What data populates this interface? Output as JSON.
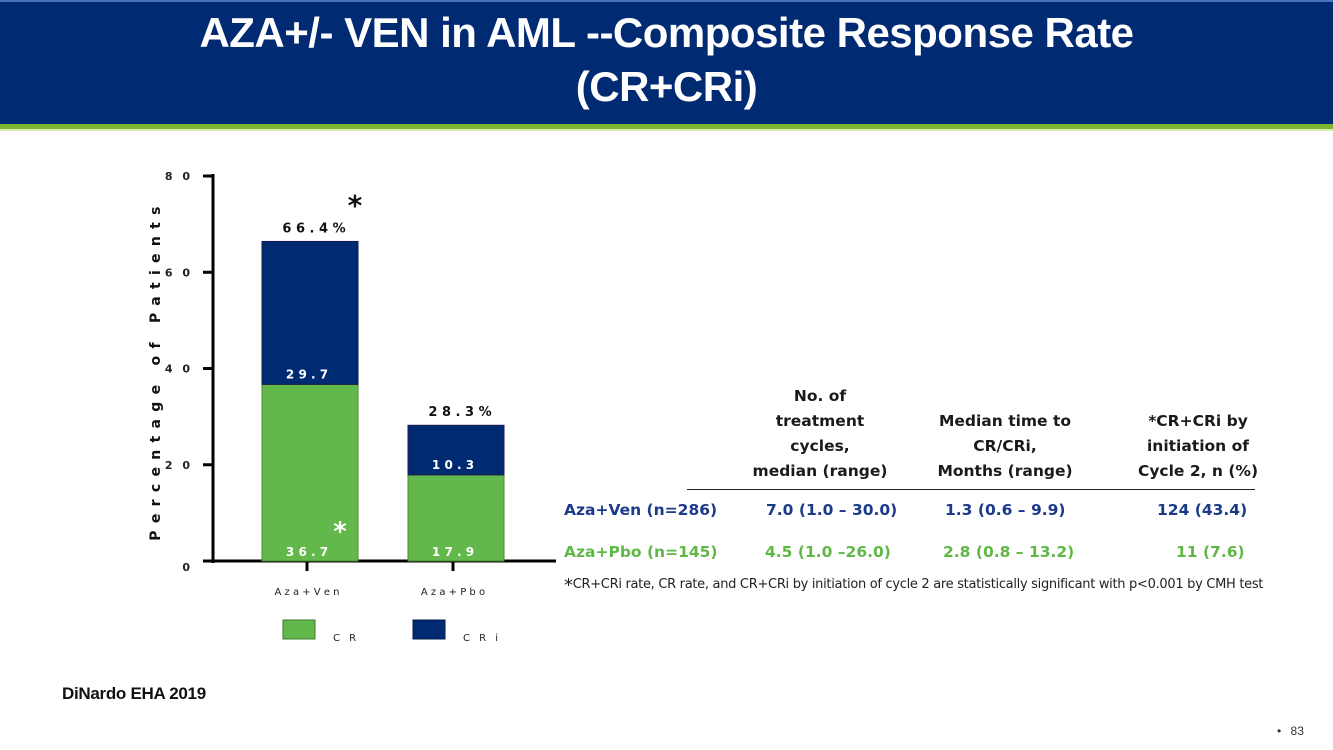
{
  "header": {
    "title_line1": "AZA+/- VEN in AML --Composite Response Rate",
    "title_line2": "(CR+CRi)"
  },
  "colors": {
    "header_bg": "#002b73",
    "accent_green": "#7db52e",
    "cr_color": "#62b84a",
    "cri_color": "#002b73",
    "ven_row_text": "#1b3a8a",
    "pbo_row_text": "#5fb846"
  },
  "chart_data": {
    "type": "bar",
    "stacked": true,
    "title": "",
    "xlabel": "",
    "ylabel": "Percentage of Patients",
    "ylim": [
      0,
      80
    ],
    "yticks": [
      0,
      20,
      40,
      60,
      80
    ],
    "ytick_labels": [
      "0",
      "2 0",
      "4 0",
      "6 0",
      "8 0"
    ],
    "categories": [
      "Aza+Ven",
      "Aza+Pbo"
    ],
    "category_labels": [
      "A z a + V e n",
      "A z a + P b o"
    ],
    "series": [
      {
        "name": "CR",
        "legend_label": "C R",
        "color": "#62b84a",
        "values": [
          36.7,
          17.9
        ],
        "labels": [
          "3 6 . 7",
          "1 7 . 9"
        ]
      },
      {
        "name": "CRi",
        "legend_label": "C R i",
        "color": "#002b73",
        "values": [
          29.7,
          10.3
        ],
        "labels": [
          "2 9 . 7",
          "1 0 . 3"
        ]
      }
    ],
    "totals": [
      66.4,
      28.3
    ],
    "total_labels": [
      "6 6 . 4 %",
      "2 8 . 3 %"
    ],
    "annotations": [
      {
        "text": "*",
        "target": "Aza+Ven total"
      },
      {
        "text": "*",
        "target": "Aza+Ven CR"
      }
    ],
    "legend_position": "bottom",
    "grid": false
  },
  "table": {
    "headers": [
      [
        "No. of",
        "treatment",
        "cycles,",
        "median (range)"
      ],
      [
        "Median time to",
        "CR/CRi,",
        "Months (range)"
      ],
      [
        "*CR+CRi by",
        "initiation of",
        "Cycle 2, n (%)"
      ]
    ],
    "rows": [
      {
        "label": "Aza+Ven (n=286)",
        "cells": [
          "7.0 (1.0 – 30.0)",
          "1.3 (0.6 – 9.9)",
          "124 (43.4)"
        ]
      },
      {
        "label": "Aza+Pbo (n=145)",
        "cells": [
          "4.5 (1.0 –26.0)",
          "2.8 (0.8 – 13.2)",
          "11 (7.6)"
        ]
      }
    ]
  },
  "footnote": {
    "star": "*",
    "text": "CR+CRi rate, CR rate, and CR+CRi by initiation of cycle 2 are statistically significant with p<0.001 by CMH test"
  },
  "source": "DiNardo EHA 2019",
  "page": {
    "bullet": "•",
    "number": "83"
  }
}
